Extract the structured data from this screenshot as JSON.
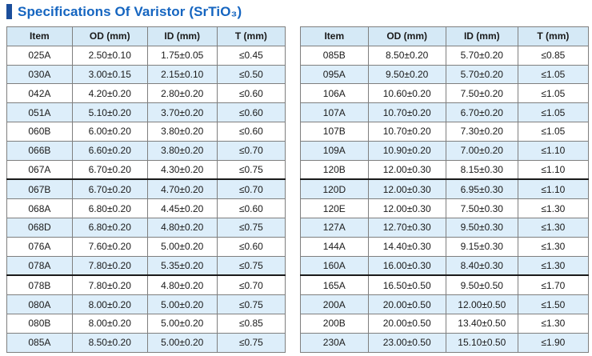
{
  "page": {
    "title": "Specifications Of Varistor (SrTiO₃)"
  },
  "columns": [
    "Item",
    "OD (mm)",
    "ID (mm)",
    "T (mm)"
  ],
  "tables": [
    {
      "name": "left",
      "heavy_top_border_row_indexes": [
        7,
        12
      ],
      "rows": [
        [
          "025A",
          "2.50±0.10",
          "1.75±0.05",
          "≤0.45"
        ],
        [
          "030A",
          "3.00±0.15",
          "2.15±0.10",
          "≤0.50"
        ],
        [
          "042A",
          "4.20±0.20",
          "2.80±0.20",
          "≤0.60"
        ],
        [
          "051A",
          "5.10±0.20",
          "3.70±0.20",
          "≤0.60"
        ],
        [
          "060B",
          "6.00±0.20",
          "3.80±0.20",
          "≤0.60"
        ],
        [
          "066B",
          "6.60±0.20",
          "3.80±0.20",
          "≤0.70"
        ],
        [
          "067A",
          "6.70±0.20",
          "4.30±0.20",
          "≤0.75"
        ],
        [
          "067B",
          "6.70±0.20",
          "4.70±0.20",
          "≤0.70"
        ],
        [
          "068A",
          "6.80±0.20",
          "4.45±0.20",
          "≤0.60"
        ],
        [
          "068D",
          "6.80±0.20",
          "4.80±0.20",
          "≤0.75"
        ],
        [
          "076A",
          "7.60±0.20",
          "5.00±0.20",
          "≤0.60"
        ],
        [
          "078A",
          "7.80±0.20",
          "5.35±0.20",
          "≤0.75"
        ],
        [
          "078B",
          "7.80±0.20",
          "4.80±0.20",
          "≤0.70"
        ],
        [
          "080A",
          "8.00±0.20",
          "5.00±0.20",
          "≤0.75"
        ],
        [
          "080B",
          "8.00±0.20",
          "5.00±0.20",
          "≤0.85"
        ],
        [
          "085A",
          "8.50±0.20",
          "5.00±0.20",
          "≤0.75"
        ]
      ]
    },
    {
      "name": "right",
      "heavy_top_border_row_indexes": [
        7,
        12
      ],
      "rows": [
        [
          "085B",
          "8.50±0.20",
          "5.70±0.20",
          "≤0.85"
        ],
        [
          "095A",
          "9.50±0.20",
          "5.70±0.20",
          "≤1.05"
        ],
        [
          "106A",
          "10.60±0.20",
          "7.50±0.20",
          "≤1.05"
        ],
        [
          "107A",
          "10.70±0.20",
          "6.70±0.20",
          "≤1.05"
        ],
        [
          "107B",
          "10.70±0.20",
          "7.30±0.20",
          "≤1.05"
        ],
        [
          "109A",
          "10.90±0.20",
          "7.00±0.20",
          "≤1.10"
        ],
        [
          "120B",
          "12.00±0.30",
          "8.15±0.30",
          "≤1.10"
        ],
        [
          "120D",
          "12.00±0.30",
          "6.95±0.30",
          "≤1.10"
        ],
        [
          "120E",
          "12.00±0.30",
          "7.50±0.30",
          "≤1.30"
        ],
        [
          "127A",
          "12.70±0.30",
          "9.50±0.30",
          "≤1.30"
        ],
        [
          "144A",
          "14.40±0.30",
          "9.15±0.30",
          "≤1.30"
        ],
        [
          "160A",
          "16.00±0.30",
          "8.40±0.30",
          "≤1.30"
        ],
        [
          "165A",
          "16.50±0.50",
          "9.50±0.50",
          "≤1.70"
        ],
        [
          "200A",
          "20.00±0.50",
          "12.00±0.50",
          "≤1.50"
        ],
        [
          "200B",
          "20.00±0.50",
          "13.40±0.50",
          "≤1.30"
        ],
        [
          "230A",
          "23.00±0.50",
          "15.10±0.50",
          "≤1.90"
        ]
      ]
    }
  ],
  "colors": {
    "title_text": "#1565c0",
    "title_bar": "#1b4e9b",
    "header_bg": "#d5e9f6",
    "alt_row_bg": "#ddeefa",
    "border": "#7f7f7f",
    "heavy_border": "#1a1a1a"
  }
}
